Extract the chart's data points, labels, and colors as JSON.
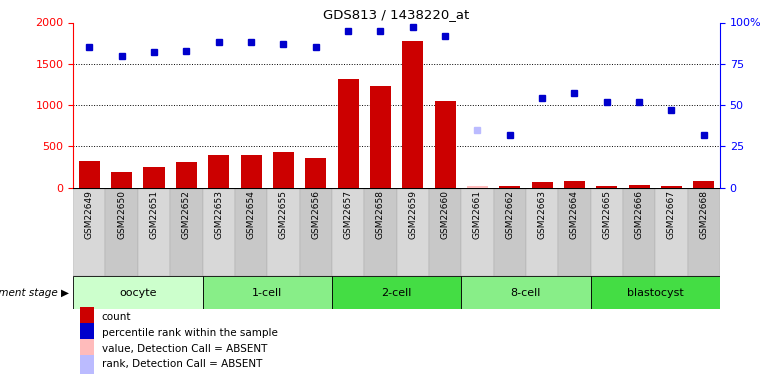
{
  "title": "GDS813 / 1438220_at",
  "samples": [
    "GSM22649",
    "GSM22650",
    "GSM22651",
    "GSM22652",
    "GSM22653",
    "GSM22654",
    "GSM22655",
    "GSM22656",
    "GSM22657",
    "GSM22658",
    "GSM22659",
    "GSM22660",
    "GSM22661",
    "GSM22662",
    "GSM22663",
    "GSM22664",
    "GSM22665",
    "GSM22666",
    "GSM22667",
    "GSM22668"
  ],
  "count_values": [
    320,
    185,
    245,
    310,
    395,
    400,
    425,
    355,
    1310,
    1230,
    1775,
    1050,
    20,
    15,
    70,
    80,
    20,
    25,
    15,
    75
  ],
  "rank_values": [
    85,
    80,
    82,
    83,
    88,
    88,
    87,
    85,
    95,
    95,
    97,
    92,
    35,
    32,
    54,
    57,
    52,
    52,
    47,
    32
  ],
  "absent_count_indices": [
    12
  ],
  "absent_rank_indices": [
    12
  ],
  "stages": [
    {
      "label": "oocyte",
      "start": 0,
      "end": 3,
      "color": "#ccffcc"
    },
    {
      "label": "1-cell",
      "start": 4,
      "end": 7,
      "color": "#88ee88"
    },
    {
      "label": "2-cell",
      "start": 8,
      "end": 11,
      "color": "#44dd44"
    },
    {
      "label": "8-cell",
      "start": 12,
      "end": 15,
      "color": "#88ee88"
    },
    {
      "label": "blastocyst",
      "start": 16,
      "end": 19,
      "color": "#44dd44"
    }
  ],
  "ylim_left": [
    0,
    2000
  ],
  "ylim_right": [
    0,
    100
  ],
  "yticks_left": [
    0,
    500,
    1000,
    1500,
    2000
  ],
  "yticks_right": [
    0,
    25,
    50,
    75,
    100
  ],
  "bar_color": "#cc0000",
  "dot_color": "#0000cc",
  "absent_bar_color": "#ffbbbb",
  "absent_dot_color": "#bbbbff",
  "xtick_bg": "#cccccc",
  "legend_items": [
    {
      "label": "count",
      "color": "#cc0000"
    },
    {
      "label": "percentile rank within the sample",
      "color": "#0000cc"
    },
    {
      "label": "value, Detection Call = ABSENT",
      "color": "#ffbbbb"
    },
    {
      "label": "rank, Detection Call = ABSENT",
      "color": "#bbbbff"
    }
  ]
}
